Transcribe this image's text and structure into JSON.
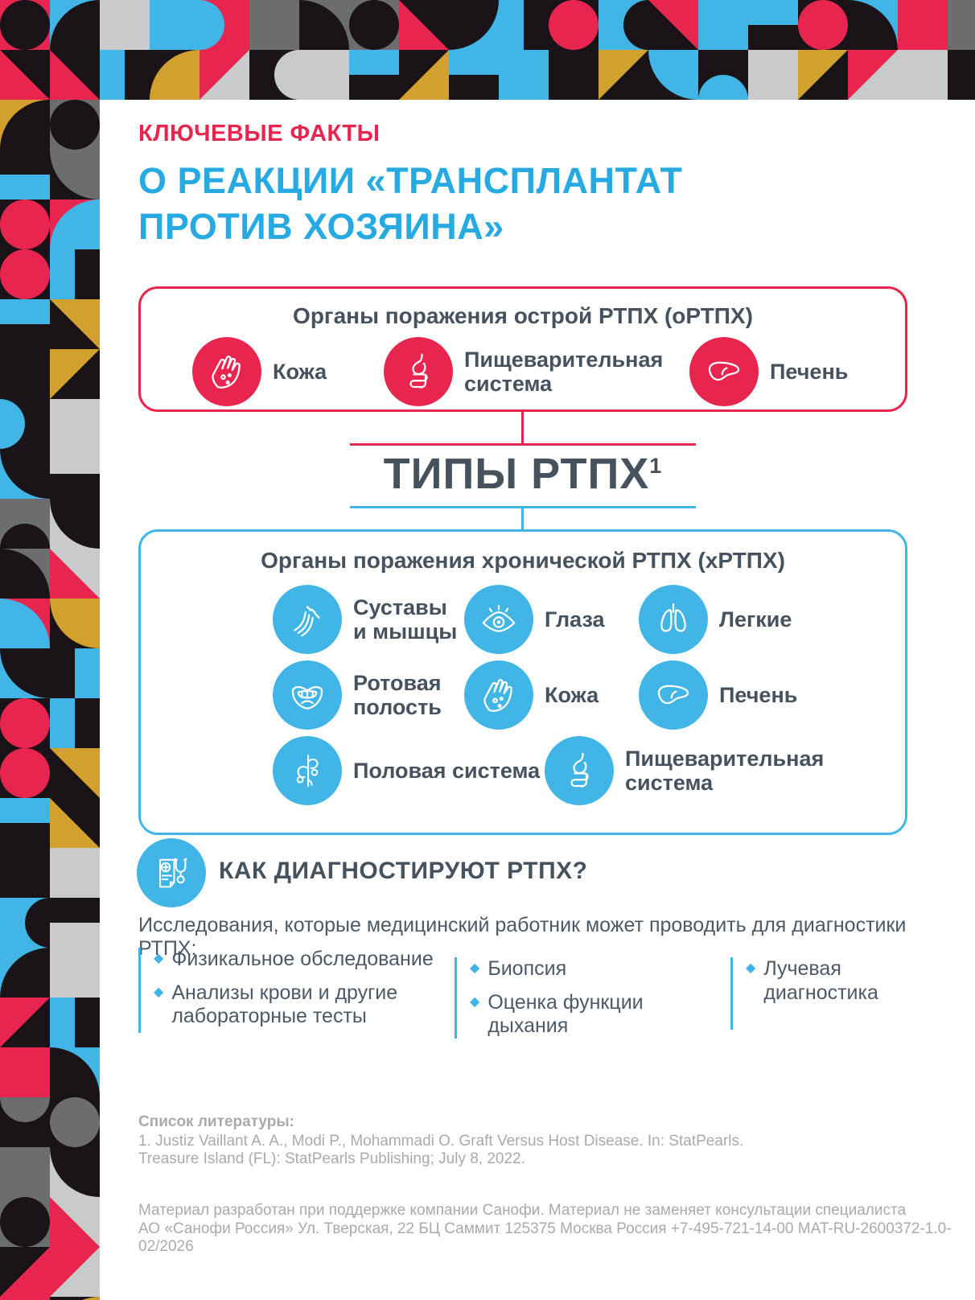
{
  "header": {
    "kicker": "КЛЮЧЕВЫЕ ФАКТЫ",
    "title": "О РЕАКЦИИ «ТРАНСПЛАНТАТ\nПРОТИВ ХОЗЯИНА»"
  },
  "acute_box": {
    "title": "Органы поражения острой РТПХ (оРТПХ)",
    "items": [
      {
        "icon": "skin-icon",
        "label": "Кожа"
      },
      {
        "icon": "digestive-icon",
        "label": "Пищеварительная\nсистема"
      },
      {
        "icon": "liver-icon",
        "label": "Печень"
      }
    ]
  },
  "types_title": {
    "text": "ТИПЫ РТПХ",
    "sup": "1"
  },
  "chronic_box": {
    "title": "Органы поражения хронической РТПХ (хРТПХ)",
    "items": [
      {
        "icon": "joints-icon",
        "label": "Суставы\nи мышцы"
      },
      {
        "icon": "eye-icon",
        "label": "Глаза"
      },
      {
        "icon": "lungs-icon",
        "label": "Легкие"
      },
      {
        "icon": "mouth-icon",
        "label": "Ротовая\nполость"
      },
      {
        "icon": "skin-icon",
        "label": "Кожа"
      },
      {
        "icon": "liver-icon",
        "label": "Печень"
      },
      {
        "icon": "reproductive-icon",
        "label": "Половая система"
      },
      {
        "icon": "digestive-icon",
        "label": "Пищеварительная\nсистема"
      }
    ]
  },
  "diagnosis": {
    "heading": "КАК ДИАГНОСТИРУЮТ РТПХ?",
    "icon": "diagnose-icon",
    "intro": "Исследования, которые медицинский работник может проводить для диагностики РТПХ:",
    "columns": [
      {
        "items": [
          "Физикальное обследование",
          "Анализы крови и другие\nлабораторные тесты"
        ]
      },
      {
        "items": [
          "Биопсия",
          "Оценка функции дыхания"
        ]
      },
      {
        "items": [
          "Лучевая\nдиагностика"
        ]
      }
    ]
  },
  "footer": {
    "references_label": "Список литературы:",
    "reference_line1": "1. Justiz Vaillant A. A., Modi P., Mohammadi O. Graft Versus Host Disease. In: StatPearls.",
    "reference_line2": "Treasure Island (FL): StatPearls Publishing; July 8, 2022.",
    "disclaimer_line1": "Материал разработан при поддержке компании Санофи. Материал не заменяет консультации специалиста",
    "disclaimer_line2": "АО «Санофи Россия» Ул. Тверская, 22 БЦ Саммит 125375 Москва Россия +7-495-721-14-00  MAT-RU-2600372-1.0-02/2026"
  },
  "theme": {
    "red": "#E8254E",
    "cyan": "#41B6E6",
    "title_cyan": "#27AAE1",
    "navy": "#46525E",
    "footer_gray": "#A8AAAC"
  },
  "pattern": {
    "tile_size": 62,
    "palette": {
      "R": "#E8254E",
      "B": "#41B6E6",
      "K": "#1A1418",
      "L": "#C9CACB",
      "D": "#6C6D6F",
      "G": "#D2A02E",
      "W": "#FFFFFF"
    },
    "top": [
      "R.c.K",
      "B.q.K.br",
      "L.s",
      "B.s",
      "R.m.B.l",
      "D.s",
      "D.q.K.bl",
      "D.c.K",
      "K.t.R.bl",
      "B.q.K.tl",
      "K.h.B.l",
      "K.c.R",
      "B.m.K.r",
      "K.t.R.tr",
      "B.s",
      "K.h.B.t",
      "K.c.R",
      "B.q.K.bl",
      "R.s",
      "D.s",
      "K.t.R.bl",
      "R.t.K.tr",
      "K.h.B.l",
      "K.q.G.br",
      "R.t.L.br",
      "K.m.L.r",
      "L.s",
      "B.h.K.b",
      "K.t.G.br",
      "K.h.B.t",
      "B.s",
      "K.s",
      "G.t.K.br",
      "K.q.B.tr",
      "K.m.B.b",
      "L.s",
      "K.t.G.tl",
      "R.t.L.br",
      "L.s",
      "K.s"
    ],
    "left": [
      "G.q.K.br",
      "D.c.K",
      "K.h.B.b",
      "K.q.D.tr",
      "K.c.R",
      "R.q.B.br",
      "K.c.R",
      "B.h.K.r",
      "K.h.B.t",
      "K.t.G.tr",
      "K.s",
      "G.t.K.br",
      "K.m.B.l",
      "L.s",
      "B.q.K.tr",
      "L.h.K.b",
      "D.m.K.b",
      "L.q.K.tr",
      "D.q.K.bl",
      "L.t.R.bl",
      "R.q.B.bl",
      "K.q.G.tr",
      "B.q.K.tr",
      "K.h.B.r",
      "K.c.R",
      "K.h.B.l",
      "K.c.R",
      "K.t.G.tr",
      "B.h.K.b",
      "K.t.G.bl",
      "K.s",
      "L.s",
      "B.m.K.r",
      "L.h.K.t",
      "B.q.K.br",
      "L.s",
      "K.t.R.tl",
      "K.h.B.l",
      "R.s",
      "B.q.K.bl",
      "K.m.D.t",
      "K.c.D",
      "D.s",
      "L.q.K.tr",
      "D.c.K",
      "L.t.R.bl",
      "K.t.R.br",
      "L.t.R.tl",
      "R.m.B.b",
      "K.q.G.br"
    ]
  }
}
